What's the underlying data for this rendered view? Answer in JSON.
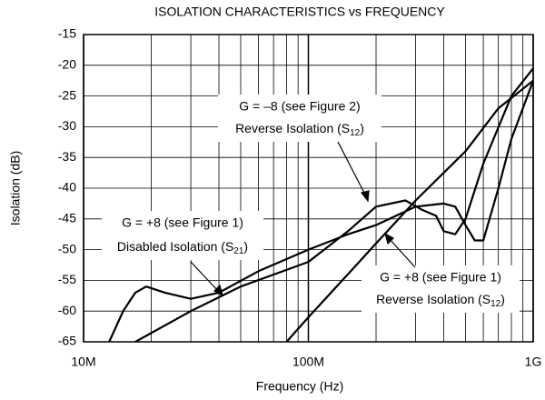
{
  "chart_data": {
    "type": "line",
    "title": "ISOLATION CHARACTERISTICS vs FREQUENCY",
    "xlabel": "Frequency (Hz)",
    "ylabel": "Isolation (dB)",
    "xscale": "log",
    "xlim": [
      10000000,
      1000000000
    ],
    "xticks": [
      {
        "value": 10000000,
        "label": "10M"
      },
      {
        "value": 100000000,
        "label": "100M"
      },
      {
        "value": 1000000000,
        "label": "1G"
      }
    ],
    "xminorticks": [
      20000000,
      30000000,
      40000000,
      50000000,
      60000000,
      70000000,
      80000000,
      90000000,
      200000000,
      300000000,
      400000000,
      500000000,
      600000000,
      700000000,
      800000000,
      900000000
    ],
    "ylim": [
      -65,
      -15
    ],
    "yticks": [
      -65,
      -60,
      -55,
      -50,
      -45,
      -40,
      -35,
      -30,
      -25,
      -20,
      -15
    ],
    "grid": true,
    "series": [
      {
        "color": "#000000",
        "x": [
          13000000,
          15000000,
          17000000,
          19000000,
          23000000,
          30000000,
          40000000,
          60000000,
          100000000,
          150000000,
          200000000,
          300000000,
          400000000,
          450000000,
          500000000,
          550000000,
          600000000,
          700000000,
          800000000,
          1000000000
        ],
        "values": [
          -65,
          -60,
          -57,
          -56,
          -57,
          -58,
          -57,
          -53.5,
          -50,
          -47.5,
          -46,
          -43,
          -42.5,
          -43,
          -46,
          -48.5,
          -48.5,
          -40,
          -32,
          -22.5
        ]
      },
      {
        "color": "#000000",
        "x": [
          17000000,
          30000000,
          50000000,
          100000000,
          150000000,
          200000000,
          270000000,
          320000000,
          370000000,
          400000000,
          450000000,
          500000000,
          600000000,
          800000000,
          1000000000
        ],
        "values": [
          -65,
          -60,
          -56,
          -52,
          -47,
          -43,
          -42,
          -43.5,
          -44.5,
          -47,
          -47.5,
          -45,
          -36,
          -25,
          -20.5
        ]
      },
      {
        "color": "#000000",
        "x": [
          80000000,
          100000000,
          150000000,
          200000000,
          300000000,
          500000000,
          700000000,
          1000000000
        ],
        "values": [
          -65,
          -61,
          -54,
          -49,
          -42,
          -34,
          -27,
          -22.5
        ]
      }
    ],
    "annotations": [
      {
        "line1": "G = –8 (see Figure 2)",
        "line2": "Reverse Isolation (S",
        "sub": "12",
        "end": ")"
      },
      {
        "line1": "G = +8 (see Figure 1)",
        "line2": "Disabled Isolation (S",
        "sub": "21",
        "end": ")"
      },
      {
        "line1": "G = +8 (see Figure 1)",
        "line2": "Reverse Isolation (S",
        "sub": "12",
        "end": ")"
      }
    ]
  }
}
